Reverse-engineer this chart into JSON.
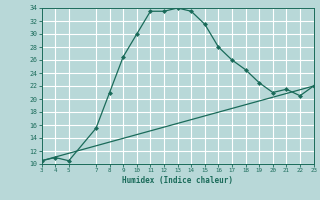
{
  "xlabel": "Humidex (Indice chaleur)",
  "bg_color": "#b8d8d8",
  "grid_color": "#ffffff",
  "line_color": "#1a6b5a",
  "curve1_x": [
    3,
    4,
    5,
    7,
    8,
    9,
    10,
    11,
    12,
    13,
    14,
    15,
    16,
    17,
    18,
    19,
    20,
    21,
    22,
    23
  ],
  "curve1_y": [
    10.5,
    11,
    10.5,
    15.5,
    21,
    26.5,
    30,
    33.5,
    33.5,
    34,
    33.5,
    31.5,
    28,
    26,
    24.5,
    22.5,
    21,
    21.5,
    20.5,
    22
  ],
  "curve2_x": [
    3,
    23
  ],
  "curve2_y": [
    10.5,
    22
  ],
  "xlim": [
    3,
    23
  ],
  "ylim": [
    10,
    34
  ],
  "xticks": [
    3,
    4,
    5,
    7,
    8,
    9,
    10,
    11,
    12,
    13,
    14,
    15,
    16,
    17,
    18,
    19,
    20,
    21,
    22,
    23
  ],
  "yticks": [
    10,
    12,
    14,
    16,
    18,
    20,
    22,
    24,
    26,
    28,
    30,
    32,
    34
  ]
}
